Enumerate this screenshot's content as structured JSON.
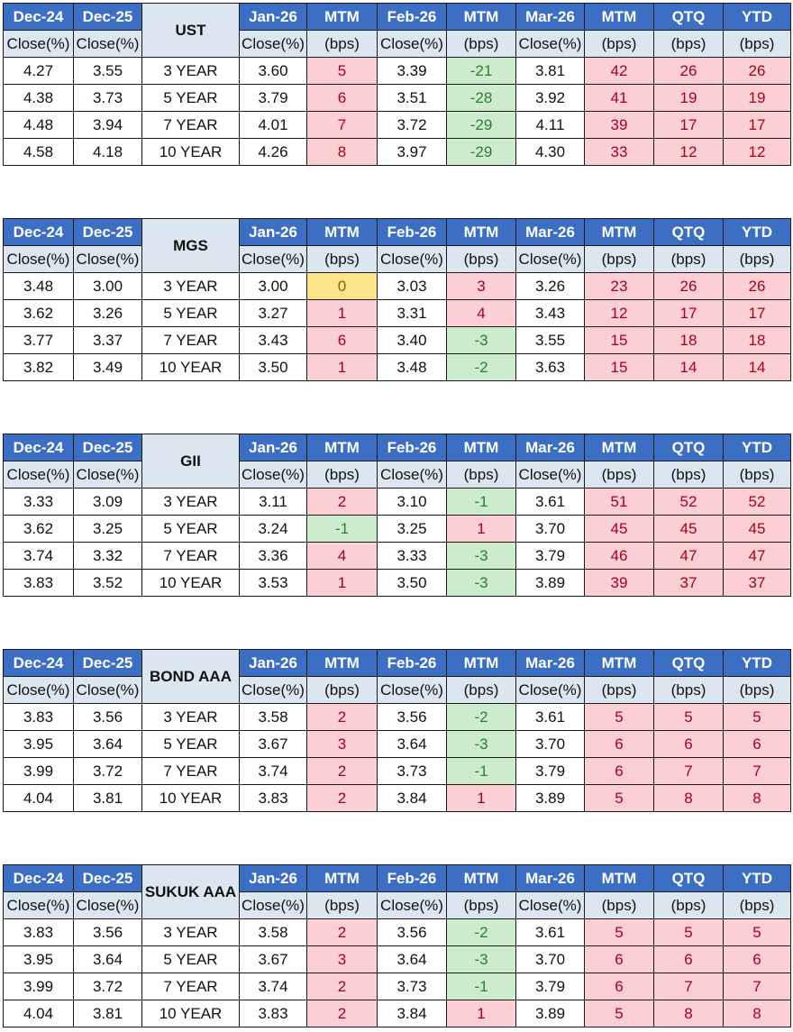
{
  "headers": {
    "col_dec24": "Dec-24",
    "col_dec25": "Dec-25",
    "col_jan26": "Jan-26",
    "col_feb26": "Feb-26",
    "col_mar26": "Mar-26",
    "col_mtm": "MTM",
    "col_qtq": "QTQ",
    "col_ytd": "YTD",
    "close": "Close(%)",
    "bps": "(bps)"
  },
  "tables": [
    {
      "title": "UST",
      "rows": [
        {
          "dec24": "4.27",
          "dec25": "3.55",
          "tenor": "3 YEAR",
          "jan": "3.60",
          "mtm1": "5",
          "feb": "3.39",
          "mtm2": "-21",
          "mar": "3.81",
          "mtm3": "42",
          "qtq": "26",
          "ytd": "26"
        },
        {
          "dec24": "4.38",
          "dec25": "3.73",
          "tenor": "5 YEAR",
          "jan": "3.79",
          "mtm1": "6",
          "feb": "3.51",
          "mtm2": "-28",
          "mar": "3.92",
          "mtm3": "41",
          "qtq": "19",
          "ytd": "19"
        },
        {
          "dec24": "4.48",
          "dec25": "3.94",
          "tenor": "7 YEAR",
          "jan": "4.01",
          "mtm1": "7",
          "feb": "3.72",
          "mtm2": "-29",
          "mar": "4.11",
          "mtm3": "39",
          "qtq": "17",
          "ytd": "17"
        },
        {
          "dec24": "4.58",
          "dec25": "4.18",
          "tenor": "10 YEAR",
          "jan": "4.26",
          "mtm1": "8",
          "feb": "3.97",
          "mtm2": "-29",
          "mar": "4.30",
          "mtm3": "33",
          "qtq": "12",
          "ytd": "12"
        }
      ]
    },
    {
      "title": "MGS",
      "rows": [
        {
          "dec24": "3.48",
          "dec25": "3.00",
          "tenor": "3 YEAR",
          "jan": "3.00",
          "mtm1": "0",
          "feb": "3.03",
          "mtm2": "3",
          "mar": "3.26",
          "mtm3": "23",
          "qtq": "26",
          "ytd": "26"
        },
        {
          "dec24": "3.62",
          "dec25": "3.26",
          "tenor": "5 YEAR",
          "jan": "3.27",
          "mtm1": "1",
          "feb": "3.31",
          "mtm2": "4",
          "mar": "3.43",
          "mtm3": "12",
          "qtq": "17",
          "ytd": "17"
        },
        {
          "dec24": "3.77",
          "dec25": "3.37",
          "tenor": "7 YEAR",
          "jan": "3.43",
          "mtm1": "6",
          "feb": "3.40",
          "mtm2": "-3",
          "mar": "3.55",
          "mtm3": "15",
          "qtq": "18",
          "ytd": "18"
        },
        {
          "dec24": "3.82",
          "dec25": "3.49",
          "tenor": "10 YEAR",
          "jan": "3.50",
          "mtm1": "1",
          "feb": "3.48",
          "mtm2": "-2",
          "mar": "3.63",
          "mtm3": "15",
          "qtq": "14",
          "ytd": "14"
        }
      ]
    },
    {
      "title": "GII",
      "rows": [
        {
          "dec24": "3.33",
          "dec25": "3.09",
          "tenor": "3 YEAR",
          "jan": "3.11",
          "mtm1": "2",
          "feb": "3.10",
          "mtm2": "-1",
          "mar": "3.61",
          "mtm3": "51",
          "qtq": "52",
          "ytd": "52"
        },
        {
          "dec24": "3.62",
          "dec25": "3.25",
          "tenor": "5 YEAR",
          "jan": "3.24",
          "mtm1": "-1",
          "feb": "3.25",
          "mtm2": "1",
          "mar": "3.70",
          "mtm3": "45",
          "qtq": "45",
          "ytd": "45"
        },
        {
          "dec24": "3.74",
          "dec25": "3.32",
          "tenor": "7 YEAR",
          "jan": "3.36",
          "mtm1": "4",
          "feb": "3.33",
          "mtm2": "-3",
          "mar": "3.79",
          "mtm3": "46",
          "qtq": "47",
          "ytd": "47"
        },
        {
          "dec24": "3.83",
          "dec25": "3.52",
          "tenor": "10 YEAR",
          "jan": "3.53",
          "mtm1": "1",
          "feb": "3.50",
          "mtm2": "-3",
          "mar": "3.89",
          "mtm3": "39",
          "qtq": "37",
          "ytd": "37"
        }
      ]
    },
    {
      "title": "BOND AAA",
      "rows": [
        {
          "dec24": "3.83",
          "dec25": "3.56",
          "tenor": "3 YEAR",
          "jan": "3.58",
          "mtm1": "2",
          "feb": "3.56",
          "mtm2": "-2",
          "mar": "3.61",
          "mtm3": "5",
          "qtq": "5",
          "ytd": "5"
        },
        {
          "dec24": "3.95",
          "dec25": "3.64",
          "tenor": "5 YEAR",
          "jan": "3.67",
          "mtm1": "3",
          "feb": "3.64",
          "mtm2": "-3",
          "mar": "3.70",
          "mtm3": "6",
          "qtq": "6",
          "ytd": "6"
        },
        {
          "dec24": "3.99",
          "dec25": "3.72",
          "tenor": "7 YEAR",
          "jan": "3.74",
          "mtm1": "2",
          "feb": "3.73",
          "mtm2": "-1",
          "mar": "3.79",
          "mtm3": "6",
          "qtq": "7",
          "ytd": "7"
        },
        {
          "dec24": "4.04",
          "dec25": "3.81",
          "tenor": "10 YEAR",
          "jan": "3.83",
          "mtm1": "2",
          "feb": "3.84",
          "mtm2": "1",
          "mar": "3.89",
          "mtm3": "5",
          "qtq": "8",
          "ytd": "8"
        }
      ]
    },
    {
      "title": "SUKUK AAA",
      "rows": [
        {
          "dec24": "3.83",
          "dec25": "3.56",
          "tenor": "3 YEAR",
          "jan": "3.58",
          "mtm1": "2",
          "feb": "3.56",
          "mtm2": "-2",
          "mar": "3.61",
          "mtm3": "5",
          "qtq": "5",
          "ytd": "5"
        },
        {
          "dec24": "3.95",
          "dec25": "3.64",
          "tenor": "5 YEAR",
          "jan": "3.67",
          "mtm1": "3",
          "feb": "3.64",
          "mtm2": "-3",
          "mar": "3.70",
          "mtm3": "6",
          "qtq": "6",
          "ytd": "6"
        },
        {
          "dec24": "3.99",
          "dec25": "3.72",
          "tenor": "7 YEAR",
          "jan": "3.74",
          "mtm1": "2",
          "feb": "3.73",
          "mtm2": "-1",
          "mar": "3.79",
          "mtm3": "6",
          "qtq": "7",
          "ytd": "7"
        },
        {
          "dec24": "4.04",
          "dec25": "3.81",
          "tenor": "10 YEAR",
          "jan": "3.83",
          "mtm1": "2",
          "feb": "3.84",
          "mtm2": "1",
          "mar": "3.89",
          "mtm3": "5",
          "qtq": "8",
          "ytd": "8"
        }
      ]
    }
  ]
}
